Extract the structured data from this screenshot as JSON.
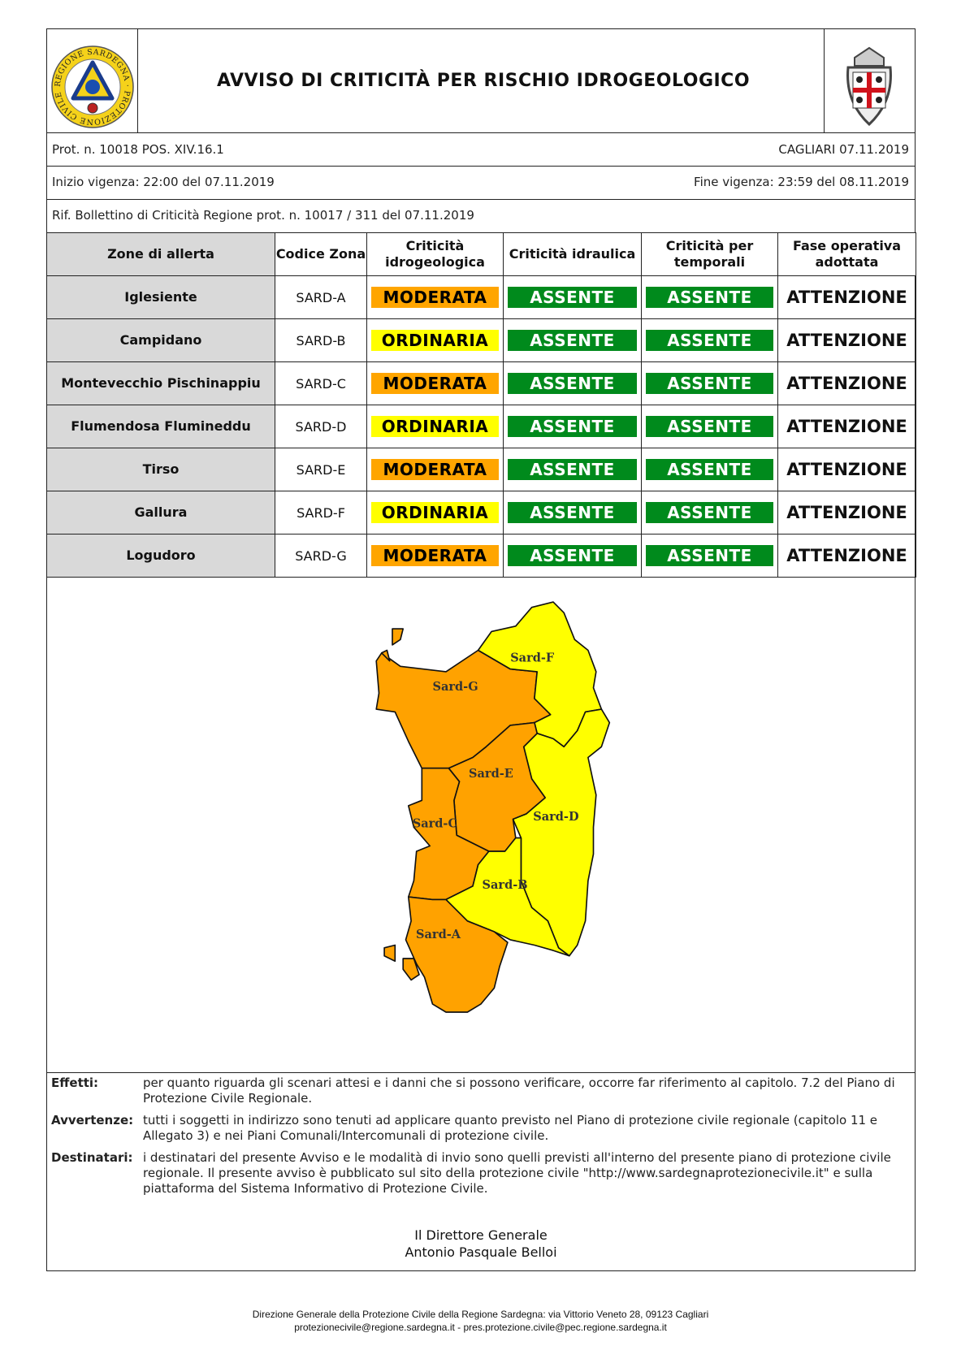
{
  "header": {
    "title": "AVVISO DI CRITICITÀ PER RISCHIO IDROGEOLOGICO",
    "left_logo": "Regione Sardegna Protezione Civile logo",
    "left_logo_text": "REGIONE SARDEGNA · PROTEZIONE CIVILE",
    "right_logo": "Sardinia coat of arms (Quattro Mori)"
  },
  "meta": {
    "protocol": "Prot. n. 10018 POS. XIV.16.1",
    "place_date": "CAGLIARI 07.11.2019",
    "start": "Inizio vigenza: 22:00 del 07.11.2019",
    "end": "Fine vigenza: 23:59 del 08.11.2019",
    "reference": "Rif. Bollettino di Criticità Regione prot. n. 10017 / 311 del 07.11.2019"
  },
  "table": {
    "headers": [
      "Zone di allerta",
      "Codice Zona",
      "Criticità idrogeologica",
      "Criticità idraulica",
      "Criticità per temporali",
      "Fase operativa adottata"
    ],
    "rows": [
      {
        "zone": "Iglesiente",
        "code": "SARD-A",
        "idrogeologica": "MODERATA",
        "idraulica": "ASSENTE",
        "temporali": "ASSENTE",
        "fase": "ATTENZIONE"
      },
      {
        "zone": "Campidano",
        "code": "SARD-B",
        "idrogeologica": "ORDINARIA",
        "idraulica": "ASSENTE",
        "temporali": "ASSENTE",
        "fase": "ATTENZIONE"
      },
      {
        "zone": "Montevecchio Pischinappiu",
        "code": "SARD-C",
        "idrogeologica": "MODERATA",
        "idraulica": "ASSENTE",
        "temporali": "ASSENTE",
        "fase": "ATTENZIONE"
      },
      {
        "zone": "Flumendosa Flumineddu",
        "code": "SARD-D",
        "idrogeologica": "ORDINARIA",
        "idraulica": "ASSENTE",
        "temporali": "ASSENTE",
        "fase": "ATTENZIONE"
      },
      {
        "zone": "Tirso",
        "code": "SARD-E",
        "idrogeologica": "MODERATA",
        "idraulica": "ASSENTE",
        "temporali": "ASSENTE",
        "fase": "ATTENZIONE"
      },
      {
        "zone": "Gallura",
        "code": "SARD-F",
        "idrogeologica": "ORDINARIA",
        "idraulica": "ASSENTE",
        "temporali": "ASSENTE",
        "fase": "ATTENZIONE"
      },
      {
        "zone": "Logudoro",
        "code": "SARD-G",
        "idrogeologica": "MODERATA",
        "idraulica": "ASSENTE",
        "temporali": "ASSENTE",
        "fase": "ATTENZIONE"
      }
    ],
    "level_colors": {
      "MODERATA": "#ffa500",
      "ORDINARIA": "#ffff00",
      "ASSENTE": "#008a1c"
    }
  },
  "map": {
    "labels": {
      "A": "Sard-A",
      "B": "Sard-B",
      "C": "Sard-C",
      "D": "Sard-D",
      "E": "Sard-E",
      "F": "Sard-F",
      "G": "Sard-G"
    },
    "colors": {
      "moderata": "#ffa200",
      "ordinaria": "#ffff00"
    }
  },
  "notes": [
    {
      "label": "Effetti:",
      "text": "per quanto riguarda gli scenari attesi e i danni che si possono verificare, occorre far riferimento al capitolo. 7.2 del Piano di Protezione Civile Regionale."
    },
    {
      "label": "Avvertenze:",
      "text": "tutti i soggetti in indirizzo sono tenuti ad applicare quanto previsto nel Piano di protezione civile regionale (capitolo 11 e Allegato 3) e nei Piani Comunali/Intercomunali di protezione civile."
    },
    {
      "label": "Destinatari:",
      "text": "i destinatari del presente Avviso e le modalità di invio sono quelli previsti all'interno del presente piano di protezione civile regionale. Il presente avviso è pubblicato sul sito della protezione civile \"http://www.sardegnaprotezionecivile.it\" e sulla piattaforma del Sistema Informativo di Protezione Civile."
    }
  ],
  "signature": {
    "role": "Il Direttore Generale",
    "name": "Antonio Pasquale Belloi"
  },
  "footer": {
    "line1": "Direzione Generale della Protezione Civile della Regione Sardegna: via Vittorio Veneto 28, 09123 Cagliari",
    "line2": "protezionecivile@regione.sardegna.it - pres.protezione.civile@pec.regione.sardegna.it"
  }
}
